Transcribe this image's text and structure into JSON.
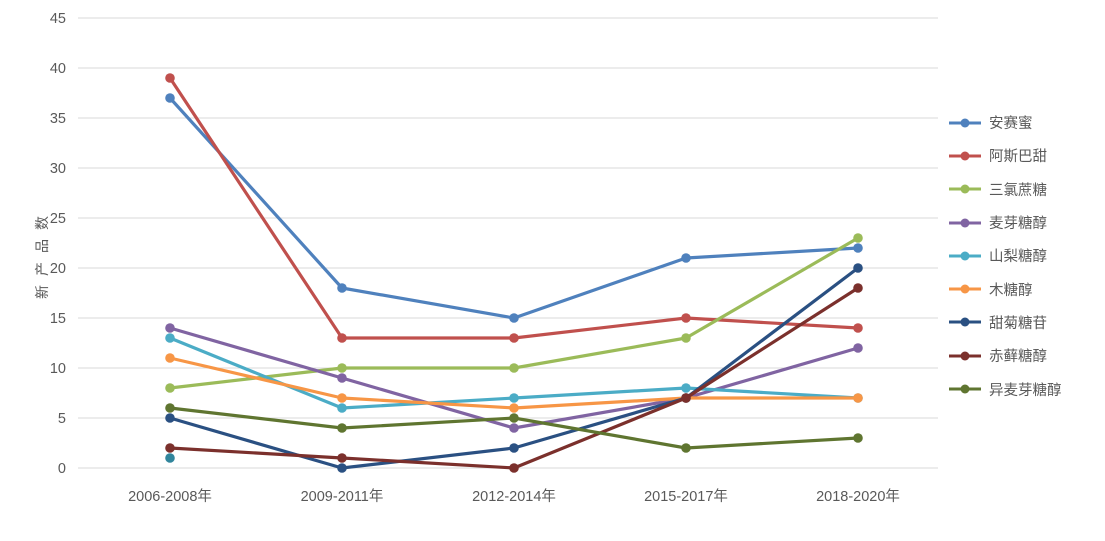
{
  "chart_data": {
    "type": "line",
    "ylabel": "新产品数",
    "xlabel": "",
    "categories": [
      "2006-2008年",
      "2009-2011年",
      "2012-2014年",
      "2015-2017年",
      "2018-2020年"
    ],
    "yticks": [
      0,
      5,
      10,
      15,
      20,
      25,
      30,
      35,
      40,
      45
    ],
    "ylim": [
      0,
      45
    ],
    "grid": "horizontal",
    "legend_position": "right",
    "series": [
      {
        "name": "安赛蜜",
        "color": "#4F81BD",
        "values": [
          37,
          18,
          15,
          21,
          22
        ]
      },
      {
        "name": "阿斯巴甜",
        "color": "#C0504D",
        "values": [
          39,
          13,
          13,
          15,
          14
        ]
      },
      {
        "name": "三氯蔗糖",
        "color": "#9BBB59",
        "values": [
          8,
          10,
          10,
          13,
          23
        ]
      },
      {
        "name": "麦芽糖醇",
        "color": "#8064A2",
        "values": [
          14,
          9,
          4,
          7,
          12
        ]
      },
      {
        "name": "山梨糖醇",
        "color": "#4BACC6",
        "values": [
          13,
          6,
          7,
          8,
          7
        ]
      },
      {
        "name": "木糖醇",
        "color": "#F79646",
        "values": [
          11,
          7,
          6,
          7,
          7
        ]
      },
      {
        "name": "甜菊糖苷",
        "color": "#2A5082",
        "values": [
          5,
          0,
          2,
          7,
          20
        ]
      },
      {
        "name": "赤藓糖醇",
        "color": "#7B302C",
        "values": [
          2,
          1,
          0,
          7,
          18
        ]
      },
      {
        "name": "异麦芽糖醇",
        "color": "#5F7530",
        "values": [
          6,
          4,
          5,
          2,
          3
        ]
      }
    ],
    "extra_points": [
      {
        "category": "2006-2008年",
        "value": 1,
        "color": "#31859C"
      }
    ]
  },
  "colors": {
    "background": "#FFFFFF",
    "gridline": "#D9D9D9",
    "axis_text": "#595959"
  }
}
